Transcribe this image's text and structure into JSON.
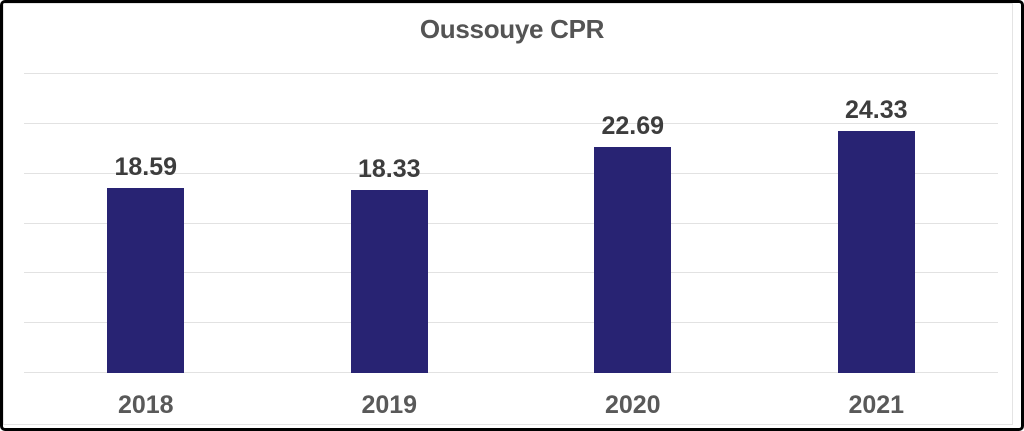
{
  "chart_data": {
    "type": "bar",
    "title": "Oussouye CPR",
    "categories": [
      "2018",
      "2019",
      "2020",
      "2021"
    ],
    "values": [
      18.59,
      18.33,
      22.69,
      24.33
    ],
    "data_labels": [
      "18.59",
      "18.33",
      "22.69",
      "24.33"
    ],
    "xlabel": "",
    "ylabel": "",
    "ylim": [
      0,
      30
    ],
    "gridline_step": 5,
    "grid": "horizontal-only",
    "y_tick_labels_visible": false,
    "legend": "none",
    "colors": {
      "bar": "#282373",
      "gridline": "#e2e2e2",
      "title": "#545454",
      "data_label": "#3d3d3d",
      "axis_label": "#595959",
      "background": "#ffffff",
      "frame_border": "#000000"
    }
  }
}
